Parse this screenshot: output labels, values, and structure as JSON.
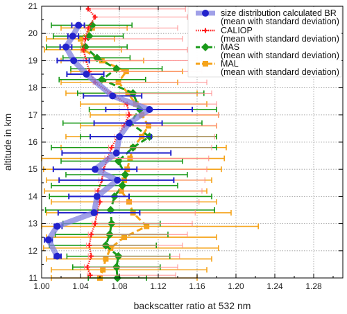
{
  "chart_data": {
    "type": "line",
    "xlabel": "backscatter ratio at 532 nm",
    "ylabel": "altitude in km",
    "xlim": [
      1.0,
      1.31
    ],
    "ylim": [
      11,
      21
    ],
    "xticks": [
      1.0,
      1.04,
      1.08,
      1.12,
      1.16,
      1.2,
      1.24,
      1.28
    ],
    "xtick_labels": [
      "1.00",
      "1.04",
      "1.08",
      "1.12",
      "1.16",
      "1.20",
      "1.24",
      "1.28"
    ],
    "yticks": [
      11,
      12,
      13,
      14,
      15,
      16,
      17,
      18,
      19,
      20,
      21
    ],
    "yminor_step": 0.5,
    "grid": true,
    "legend_position": "top-right",
    "series": [
      {
        "name": "size distribution calculated BR",
        "name2": "(mean with standard deviation)",
        "color": "#2222cc",
        "line_color": "#8080e0",
        "marker": "circle",
        "points": [
          {
            "y": 20.3,
            "x": 1.038,
            "lo": 1.031,
            "hi": 1.044
          },
          {
            "y": 19.9,
            "x": 1.032,
            "lo": 1.027,
            "hi": 1.038
          },
          {
            "y": 19.5,
            "x": 1.025,
            "lo": 1.019,
            "hi": 1.031
          },
          {
            "y": 19.0,
            "x": 1.033,
            "lo": 1.016,
            "hi": 1.049
          },
          {
            "y": 18.5,
            "x": 1.046,
            "lo": 1.026,
            "hi": 1.064
          },
          {
            "y": 17.7,
            "x": 1.073,
            "lo": 1.043,
            "hi": 1.103
          },
          {
            "y": 17.2,
            "x": 1.111,
            "lo": 1.066,
            "hi": 1.155
          },
          {
            "y": 16.7,
            "x": 1.09,
            "lo": 1.054,
            "hi": 1.124
          },
          {
            "y": 16.2,
            "x": 1.08,
            "lo": 1.05,
            "hi": 1.113
          },
          {
            "y": 15.6,
            "x": 1.077,
            "lo": 1.021,
            "hi": 1.133
          },
          {
            "y": 15.0,
            "x": 1.055,
            "lo": 1.012,
            "hi": 1.098
          },
          {
            "y": 14.6,
            "x": 1.078,
            "lo": 1.018,
            "hi": 1.136
          },
          {
            "y": 14.0,
            "x": 1.057,
            "lo": 1.028,
            "hi": 1.09
          },
          {
            "y": 13.4,
            "x": 1.054,
            "lo": 1.017,
            "hi": 1.101
          },
          {
            "y": 12.9,
            "x": 1.016,
            "lo": 1.013,
            "hi": 1.021
          },
          {
            "y": 12.4,
            "x": 1.007,
            "lo": 1.003,
            "hi": 1.011
          },
          {
            "y": 11.8,
            "x": 1.016,
            "lo": 1.013,
            "hi": 1.02
          }
        ]
      },
      {
        "name": "CALIOP",
        "name2": "(mean with standard deviation)",
        "color": "#ff1a1a",
        "line_color": "#ff1a1a",
        "marker": "cross",
        "points": [
          {
            "y": 20.9,
            "x": 1.048,
            "lo": 1.047,
            "hi": 1.148
          },
          {
            "y": 20.6,
            "x": 1.055,
            "lo": 1.054,
            "hi": 1.15
          },
          {
            "y": 20.2,
            "x": 1.048,
            "lo": 1.045,
            "hi": 1.14
          },
          {
            "y": 19.8,
            "x": 1.045,
            "lo": 1.043,
            "hi": 1.145
          },
          {
            "y": 19.4,
            "x": 1.043,
            "lo": 1.041,
            "hi": 1.15
          },
          {
            "y": 19.0,
            "x": 1.046,
            "lo": 1.043,
            "hi": 1.16
          },
          {
            "y": 18.6,
            "x": 1.049,
            "lo": 1.046,
            "hi": 1.165
          },
          {
            "y": 18.2,
            "x": 1.055,
            "lo": 1.053,
            "hi": 1.17
          },
          {
            "y": 17.8,
            "x": 1.071,
            "lo": 1.068,
            "hi": 1.175
          },
          {
            "y": 17.4,
            "x": 1.088,
            "lo": 1.085,
            "hi": 1.18
          },
          {
            "y": 17.0,
            "x": 1.09,
            "lo": 1.087,
            "hi": 1.182
          },
          {
            "y": 16.6,
            "x": 1.085,
            "lo": 1.082,
            "hi": 1.18
          },
          {
            "y": 16.2,
            "x": 1.078,
            "lo": 1.075,
            "hi": 1.178
          },
          {
            "y": 15.8,
            "x": 1.072,
            "lo": 1.069,
            "hi": 1.175
          },
          {
            "y": 15.4,
            "x": 1.068,
            "lo": 1.065,
            "hi": 1.172
          },
          {
            "y": 15.0,
            "x": 1.064,
            "lo": 1.061,
            "hi": 1.17
          },
          {
            "y": 14.6,
            "x": 1.062,
            "lo": 1.059,
            "hi": 1.168
          },
          {
            "y": 14.2,
            "x": 1.058,
            "lo": 1.055,
            "hi": 1.165
          },
          {
            "y": 13.8,
            "x": 1.06,
            "lo": 1.057,
            "hi": 1.162
          },
          {
            "y": 13.4,
            "x": 1.057,
            "lo": 1.054,
            "hi": 1.158
          },
          {
            "y": 13.0,
            "x": 1.055,
            "lo": 1.052,
            "hi": 1.155
          },
          {
            "y": 12.6,
            "x": 1.051,
            "lo": 1.048,
            "hi": 1.15
          },
          {
            "y": 12.2,
            "x": 1.049,
            "lo": 1.046,
            "hi": 1.145
          },
          {
            "y": 11.8,
            "x": 1.051,
            "lo": 1.048,
            "hi": 1.142
          },
          {
            "y": 11.4,
            "x": 1.047,
            "lo": 1.044,
            "hi": 1.14
          },
          {
            "y": 11.1,
            "x": 1.05,
            "lo": 1.047,
            "hi": 1.138
          }
        ]
      },
      {
        "name": "MAS",
        "name2": "(mean with standard deviation)",
        "color": "#1a9a1a",
        "line_color": "#1a9a1a",
        "marker": "diamond",
        "points": [
          {
            "y": 20.3,
            "x": 1.052,
            "lo": 1.01,
            "hi": 1.093
          },
          {
            "y": 19.9,
            "x": 1.049,
            "lo": 1.012,
            "hi": 1.084
          },
          {
            "y": 19.5,
            "x": 1.045,
            "lo": 1.005,
            "hi": 1.088
          },
          {
            "y": 19.1,
            "x": 1.057,
            "lo": 1.022,
            "hi": 1.091
          },
          {
            "y": 18.7,
            "x": 1.077,
            "lo": 1.03,
            "hi": 1.124
          },
          {
            "y": 18.3,
            "x": 1.062,
            "lo": 1.018,
            "hi": 1.107
          },
          {
            "y": 17.8,
            "x": 1.094,
            "lo": 1.037,
            "hi": 1.167
          },
          {
            "y": 17.2,
            "x": 1.101,
            "lo": 1.049,
            "hi": 1.18
          },
          {
            "y": 16.7,
            "x": 1.091,
            "lo": 1.022,
            "hi": 1.165
          },
          {
            "y": 16.2,
            "x": 1.111,
            "lo": 1.04,
            "hi": 1.18
          },
          {
            "y": 15.8,
            "x": 1.094,
            "lo": 1.01,
            "hi": 1.18
          },
          {
            "y": 15.3,
            "x": 1.079,
            "lo": 1.02,
            "hi": 1.145
          },
          {
            "y": 14.8,
            "x": 1.086,
            "lo": 1.025,
            "hi": 1.15
          },
          {
            "y": 14.4,
            "x": 1.083,
            "lo": 1.01,
            "hi": 1.14
          },
          {
            "y": 14.0,
            "x": 1.075,
            "lo": 1.008,
            "hi": 1.175
          },
          {
            "y": 13.5,
            "x": 1.071,
            "lo": 1.004,
            "hi": 1.178
          },
          {
            "y": 13.0,
            "x": 1.072,
            "lo": 1.022,
            "hi": 1.122
          },
          {
            "y": 12.6,
            "x": 1.07,
            "lo": 1.014,
            "hi": 1.13
          },
          {
            "y": 12.2,
            "x": 1.066,
            "lo": 1.008,
            "hi": 1.118
          },
          {
            "y": 11.8,
            "x": 1.079,
            "lo": 1.026,
            "hi": 1.132
          },
          {
            "y": 11.4,
            "x": 1.077,
            "lo": 1.032,
            "hi": 1.122
          },
          {
            "y": 11.0,
            "x": 1.078,
            "lo": 1.048,
            "hi": 1.108
          }
        ]
      },
      {
        "name": "MAL",
        "name2": "(mean with standard deviation)",
        "color": "#f5a31a",
        "line_color": "#f5a31a",
        "marker": "square",
        "points": [
          {
            "y": 20.2,
            "x": 1.052,
            "lo": 1.02,
            "hi": 1.088
          },
          {
            "y": 19.8,
            "x": 1.04,
            "lo": 1.005,
            "hi": 1.075
          },
          {
            "y": 19.4,
            "x": 1.043,
            "lo": 1.003,
            "hi": 1.082
          },
          {
            "y": 19.0,
            "x": 1.062,
            "lo": 1.02,
            "hi": 1.105
          },
          {
            "y": 18.6,
            "x": 1.087,
            "lo": 1.03,
            "hi": 1.145
          },
          {
            "y": 18.2,
            "x": 1.079,
            "lo": 1.02,
            "hi": 1.14
          },
          {
            "y": 17.8,
            "x": 1.089,
            "lo": 1.025,
            "hi": 1.16
          },
          {
            "y": 17.4,
            "x": 1.097,
            "lo": 1.04,
            "hi": 1.17
          },
          {
            "y": 17.0,
            "x": 1.103,
            "lo": 1.05,
            "hi": 1.182
          },
          {
            "y": 16.6,
            "x": 1.11,
            "lo": 1.04,
            "hi": 1.18
          },
          {
            "y": 16.2,
            "x": 1.103,
            "lo": 1.025,
            "hi": 1.18
          },
          {
            "y": 15.8,
            "x": 1.094,
            "lo": 1.02,
            "hi": 1.19
          },
          {
            "y": 15.4,
            "x": 1.091,
            "lo": 1.0,
            "hi": 1.188
          },
          {
            "y": 15.0,
            "x": 1.088,
            "lo": 1.002,
            "hi": 1.185
          },
          {
            "y": 14.6,
            "x": 1.085,
            "lo": 1.005,
            "hi": 1.175
          },
          {
            "y": 14.2,
            "x": 1.082,
            "lo": 1.003,
            "hi": 1.17
          },
          {
            "y": 13.8,
            "x": 1.09,
            "lo": 1.01,
            "hi": 1.18
          },
          {
            "y": 13.4,
            "x": 1.094,
            "lo": 1.005,
            "hi": 1.195
          },
          {
            "y": 12.9,
            "x": 1.108,
            "lo": 1.0,
            "hi": 1.223
          },
          {
            "y": 12.5,
            "x": 1.085,
            "lo": 1.005,
            "hi": 1.18
          },
          {
            "y": 12.1,
            "x": 1.071,
            "lo": 1.002,
            "hi": 1.182
          },
          {
            "y": 11.7,
            "x": 1.066,
            "lo": 1.005,
            "hi": 1.175
          },
          {
            "y": 11.3,
            "x": 1.063,
            "lo": 1.01,
            "hi": 1.17
          },
          {
            "y": 11.0,
            "x": 1.06,
            "lo": 1.01,
            "hi": 1.16
          }
        ]
      }
    ]
  }
}
